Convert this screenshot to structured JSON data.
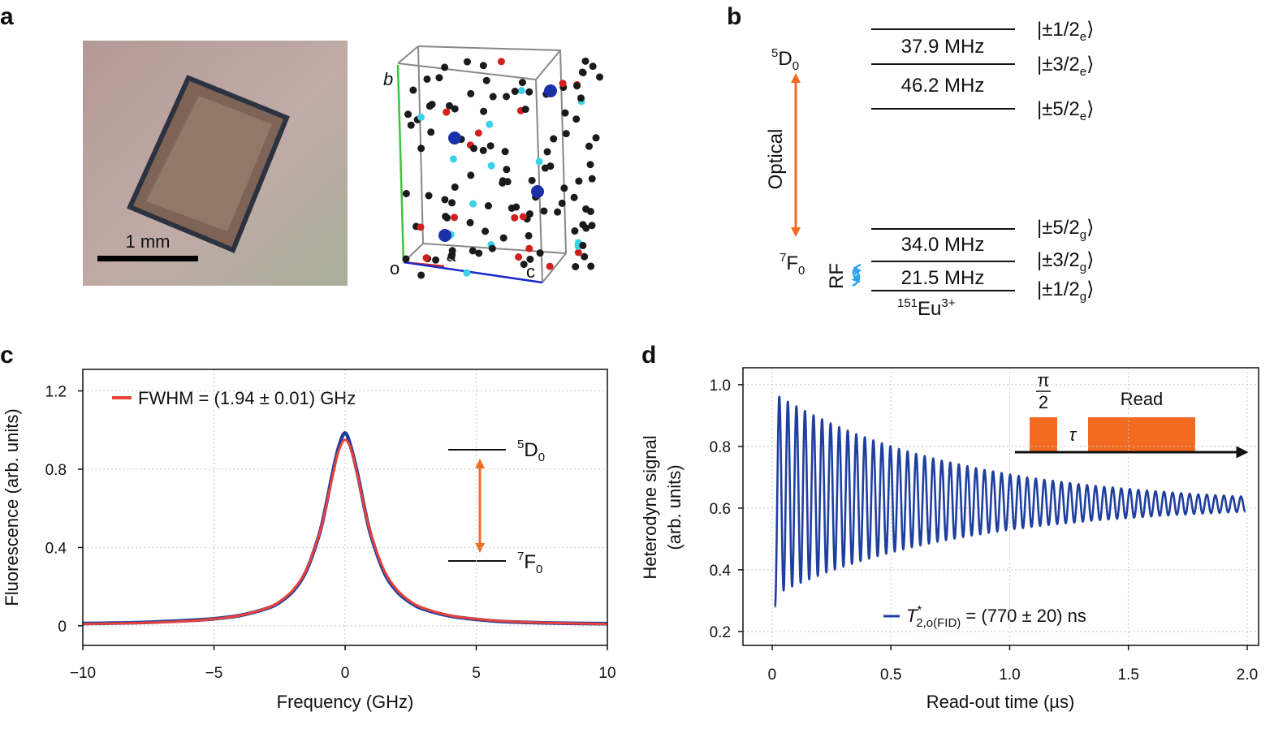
{
  "panel_labels": [
    "a",
    "b",
    "c",
    "d"
  ],
  "panel_a": {
    "scale_bar": "1 mm",
    "axes": [
      "b",
      "a",
      "c"
    ],
    "origin": "o"
  },
  "panel_b": {
    "upper": {
      "sup": "5",
      "base": "D",
      "sub": "0"
    },
    "lower": {
      "sup": "7",
      "base": "F",
      "sub": "0"
    },
    "optical": "Optical",
    "rf": "RF",
    "splittings": [
      "37.9 MHz",
      "46.2 MHz",
      "34.0 MHz",
      "21.5 MHz"
    ],
    "states": [
      {
        "text": "|±1/2",
        "sub": "e",
        "close": "⟩"
      },
      {
        "text": "|±3/2",
        "sub": "e",
        "close": "⟩"
      },
      {
        "text": "|±5/2",
        "sub": "e",
        "close": "⟩"
      },
      {
        "text": "|±5/2",
        "sub": "g",
        "close": "⟩"
      },
      {
        "text": "|±3/2",
        "sub": "g",
        "close": "⟩"
      },
      {
        "text": "|±1/2",
        "sub": "g",
        "close": "⟩"
      }
    ],
    "ion": {
      "sup": "151",
      "base": "Eu",
      "charge": "3+"
    }
  },
  "chart_data": [
    {
      "type": "line",
      "x_label": "Frequency (GHz)",
      "y_label": "Fluorescence (arb. units)",
      "x": [
        -10,
        -8,
        -6,
        -5,
        -4,
        -3,
        -2.5,
        -2,
        -1.5,
        -1,
        -0.75,
        -0.5,
        -0.25,
        0,
        0.25,
        0.5,
        0.75,
        1,
        1.5,
        2,
        2.5,
        3,
        4,
        5,
        6,
        8,
        10
      ],
      "series": [
        {
          "color": "#1f3fa0",
          "values": [
            0.012,
            0.016,
            0.027,
            0.036,
            0.053,
            0.088,
            0.12,
            0.175,
            0.275,
            0.46,
            0.6,
            0.765,
            0.91,
            0.985,
            0.9,
            0.76,
            0.595,
            0.455,
            0.27,
            0.172,
            0.118,
            0.085,
            0.05,
            0.033,
            0.022,
            0.014,
            0.011
          ]
        },
        {
          "name": "FWHM = (1.94 ± 0.01) GHz",
          "color": "#e8423a",
          "values": [
            0.009,
            0.014,
            0.024,
            0.035,
            0.053,
            0.09,
            0.124,
            0.181,
            0.28,
            0.461,
            0.594,
            0.751,
            0.891,
            0.95,
            0.891,
            0.751,
            0.594,
            0.461,
            0.28,
            0.181,
            0.124,
            0.09,
            0.053,
            0.035,
            0.024,
            0.014,
            0.009
          ]
        }
      ],
      "xlim": [
        -10,
        10
      ],
      "ylim": [
        -0.1,
        1.31
      ],
      "xticks": [
        {
          "value": -10,
          "label": "−10"
        },
        {
          "value": -5,
          "label": "−5"
        },
        0,
        5,
        10
      ],
      "yticks": [
        0,
        0.4,
        0.8,
        1.2
      ],
      "grid": true,
      "inset": {
        "upper": {
          "sup": "5",
          "base": "D",
          "sub": "0"
        },
        "lower": {
          "sup": "7",
          "base": "F",
          "sub": "0"
        }
      }
    },
    {
      "type": "line",
      "x_label": "Read-out time (µs)",
      "y_label": [
        "Heterodyne signal",
        "(arb. units)"
      ],
      "x": [
        0.012,
        0.03,
        0.048,
        0.066,
        0.084,
        0.102,
        0.12,
        0.138,
        0.156,
        0.174,
        0.192,
        0.21,
        0.228,
        0.246,
        0.264,
        0.282,
        0.3,
        0.318,
        0.336,
        0.354,
        0.372,
        0.39,
        0.408,
        0.426,
        0.444,
        0.462,
        0.48,
        0.498,
        0.516,
        0.534,
        0.552,
        0.57,
        0.588,
        0.606,
        0.624,
        0.642,
        0.66,
        0.678,
        0.696,
        0.714,
        0.732,
        0.75,
        0.768,
        0.786,
        0.804,
        0.822,
        0.84,
        0.858,
        0.876,
        0.894,
        0.912,
        0.93,
        0.948,
        0.966,
        0.984,
        1.002,
        1.02,
        1.038,
        1.056,
        1.074,
        1.092,
        1.11,
        1.128,
        1.146,
        1.164,
        1.182,
        1.2,
        1.218,
        1.236,
        1.254,
        1.272,
        1.29,
        1.308,
        1.326,
        1.344,
        1.362,
        1.38,
        1.398,
        1.416,
        1.434,
        1.452,
        1.47,
        1.488,
        1.506,
        1.524,
        1.542,
        1.56,
        1.578,
        1.596,
        1.614,
        1.632,
        1.65,
        1.668,
        1.686,
        1.704,
        1.722,
        1.74,
        1.758,
        1.776,
        1.794,
        1.812,
        1.83,
        1.848,
        1.866,
        1.884,
        1.902,
        1.92,
        1.938,
        1.956,
        1.974,
        1.992
      ],
      "series": [
        {
          "color": "#1f3fa0",
          "values": [
            0.28,
            0.961,
            0.333,
            0.945,
            0.346,
            0.93,
            0.358,
            0.915,
            0.369,
            0.901,
            0.38,
            0.888,
            0.391,
            0.875,
            0.401,
            0.863,
            0.41,
            0.852,
            0.419,
            0.84,
            0.428,
            0.83,
            0.436,
            0.82,
            0.444,
            0.81,
            0.452,
            0.801,
            0.459,
            0.792,
            0.466,
            0.784,
            0.473,
            0.776,
            0.479,
            0.769,
            0.485,
            0.761,
            0.491,
            0.754,
            0.496,
            0.748,
            0.501,
            0.742,
            0.506,
            0.736,
            0.511,
            0.73,
            0.515,
            0.724,
            0.52,
            0.719,
            0.524,
            0.714,
            0.528,
            0.709,
            0.532,
            0.705,
            0.535,
            0.7,
            0.539,
            0.696,
            0.542,
            0.692,
            0.545,
            0.689,
            0.548,
            0.685,
            0.551,
            0.682,
            0.553,
            0.678,
            0.556,
            0.675,
            0.559,
            0.672,
            0.561,
            0.669,
            0.563,
            0.667,
            0.565,
            0.664,
            0.567,
            0.662,
            0.569,
            0.659,
            0.571,
            0.657,
            0.573,
            0.655,
            0.575,
            0.653,
            0.576,
            0.651,
            0.578,
            0.649,
            0.579,
            0.647,
            0.581,
            0.645,
            0.582,
            0.644,
            0.583,
            0.642,
            0.584,
            0.641,
            0.586,
            0.639,
            0.587,
            0.638,
            0.588
          ]
        }
      ],
      "legend_label": {
        "symbol": "T",
        "sup": "*",
        "sub": "2,o(FID)",
        "rest": " = (770 ± 20) ns"
      },
      "xlim": [
        -0.123,
        2.048
      ],
      "ylim": [
        0.155,
        1.055
      ],
      "xticks": [
        0,
        0.5,
        {
          "value": 1,
          "label": "1.0"
        },
        1.5,
        {
          "value": 2,
          "label": "2.0"
        }
      ],
      "yticks": [
        0.2,
        0.4,
        0.6,
        0.8,
        {
          "value": 1,
          "label": "1.0"
        }
      ],
      "grid": true,
      "inset": {
        "pi": "π",
        "two": "2",
        "tau": "τ",
        "read": "Read"
      }
    }
  ]
}
